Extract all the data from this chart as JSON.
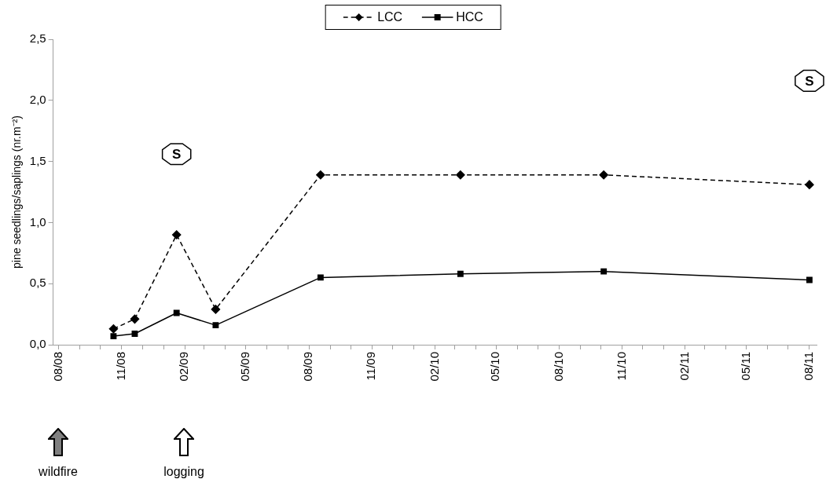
{
  "chart_data": {
    "type": "line",
    "ylabel": "pine seedlings/saplings (nr.m⁻²)",
    "x": [
      "2008-10-20",
      "2008-11-20",
      "2009-01-20",
      "2009-03-18",
      "2009-08-18",
      "2010-03-10",
      "2010-10-05",
      "2011-08-01"
    ],
    "series": [
      {
        "name": "LCC",
        "color": "#000000",
        "line_style": "dashed",
        "marker": "diamond",
        "values": [
          0.13,
          0.21,
          0.9,
          0.29,
          1.39,
          1.39,
          1.39,
          1.31
        ]
      },
      {
        "name": "HCC",
        "color": "#000000",
        "line_style": "solid",
        "marker": "square",
        "values": [
          0.07,
          0.09,
          0.26,
          0.16,
          0.55,
          0.58,
          0.6,
          0.53
        ]
      }
    ],
    "xlim": [
      "2008-07-24",
      "2011-08-12"
    ],
    "xticks": [
      {
        "value": "2008-08",
        "label": "08/08"
      },
      {
        "value": "2008-09",
        "label": null
      },
      {
        "value": "2008-10",
        "label": null
      },
      {
        "value": "2008-11",
        "label": "11/08"
      },
      {
        "value": "2008-12",
        "label": null
      },
      {
        "value": "2009-01",
        "label": null
      },
      {
        "value": "2009-02",
        "label": "02/09"
      },
      {
        "value": "2009-03",
        "label": null
      },
      {
        "value": "2009-04",
        "label": null
      },
      {
        "value": "2009-05",
        "label": "05/09"
      },
      {
        "value": "2009-06",
        "label": null
      },
      {
        "value": "2009-07",
        "label": null
      },
      {
        "value": "2009-08",
        "label": "08/09"
      },
      {
        "value": "2009-09",
        "label": null
      },
      {
        "value": "2009-10",
        "label": null
      },
      {
        "value": "2009-11",
        "label": "11/09"
      },
      {
        "value": "2009-12",
        "label": null
      },
      {
        "value": "2010-01",
        "label": null
      },
      {
        "value": "2010-02",
        "label": "02/10"
      },
      {
        "value": "2010-03",
        "label": null
      },
      {
        "value": "2010-04",
        "label": null
      },
      {
        "value": "2010-05",
        "label": "05/10"
      },
      {
        "value": "2010-06",
        "label": null
      },
      {
        "value": "2010-07",
        "label": null
      },
      {
        "value": "2010-08",
        "label": "08/10"
      },
      {
        "value": "2010-09",
        "label": null
      },
      {
        "value": "2010-10",
        "label": null
      },
      {
        "value": "2010-11",
        "label": "11/10"
      },
      {
        "value": "2010-12",
        "label": null
      },
      {
        "value": "2011-01",
        "label": null
      },
      {
        "value": "2011-02",
        "label": "02/11"
      },
      {
        "value": "2011-03",
        "label": null
      },
      {
        "value": "2011-04",
        "label": null
      },
      {
        "value": "2011-05",
        "label": "05/11"
      },
      {
        "value": "2011-06",
        "label": null
      },
      {
        "value": "2011-07",
        "label": null
      },
      {
        "value": "2011-08",
        "label": "08/11"
      }
    ],
    "ylim": [
      0,
      2.5
    ],
    "yticks": [
      {
        "value": 0,
        "label": "0,0"
      },
      {
        "value": 0.5,
        "label": "0,5"
      },
      {
        "value": 1,
        "label": "1,0"
      },
      {
        "value": 1.5,
        "label": "1,5"
      },
      {
        "value": 2,
        "label": "2,0"
      },
      {
        "value": 2.5,
        "label": "2,5"
      }
    ],
    "grid": false,
    "legend": "top",
    "annotations": [
      {
        "text": "S",
        "x": "2009-01-20",
        "y": 1.56
      },
      {
        "text": "S",
        "x": "2011-08-01",
        "y": 2.16
      },
      "wildfire",
      "logging"
    ]
  }
}
